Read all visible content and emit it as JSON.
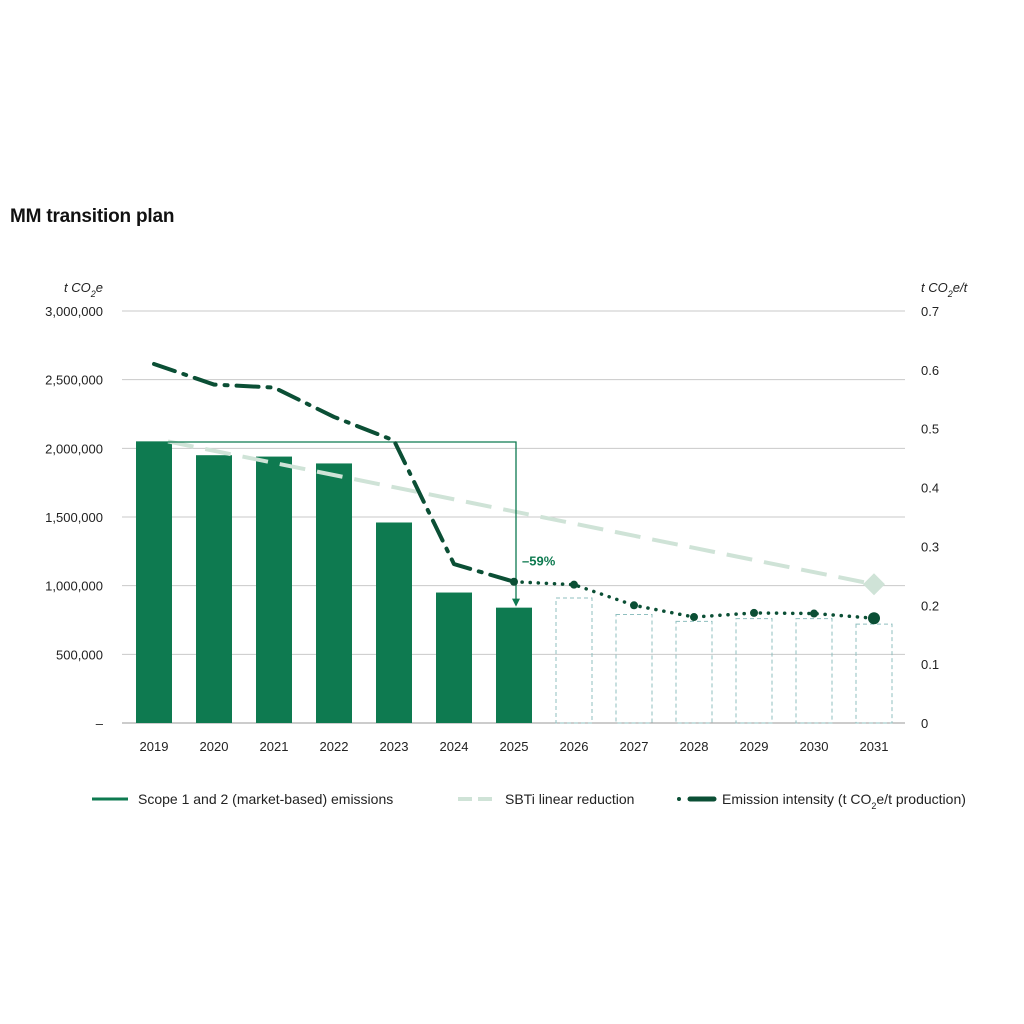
{
  "chart_data": {
    "type": "bar",
    "title": "MM transition plan",
    "left_axis": {
      "unit_prefix": "t CO",
      "unit_sub": "2",
      "unit_suffix": "e",
      "ylim": [
        0,
        3000000
      ],
      "ticks": [
        0,
        500000,
        1000000,
        1500000,
        2000000,
        2500000,
        3000000
      ],
      "tick_labels": [
        "–",
        "500,000",
        "1,000,000",
        "1,500,000",
        "2,000,000",
        "2,500,000",
        "3,000,000"
      ]
    },
    "right_axis": {
      "unit_prefix": "t CO",
      "unit_sub": "2",
      "unit_suffix": "e/t",
      "ylim": [
        0,
        0.7
      ],
      "ticks": [
        0,
        0.1,
        0.2,
        0.3,
        0.4,
        0.5,
        0.6,
        0.7
      ],
      "tick_labels": [
        "0",
        "0.1",
        "0.2",
        "0.3",
        "0.4",
        "0.5",
        "0.6",
        "0.7"
      ]
    },
    "categories": [
      "2019",
      "2020",
      "2021",
      "2022",
      "2023",
      "2024",
      "2025",
      "2026",
      "2027",
      "2028",
      "2029",
      "2030",
      "2031"
    ],
    "grid": true,
    "series": [
      {
        "name": "Scope 1 and 2 (market-based) emissions",
        "kind": "bar",
        "axis": "left",
        "color": "#0e7a50",
        "values": [
          2050000,
          1950000,
          1940000,
          1890000,
          1460000,
          950000,
          840000,
          null,
          null,
          null,
          null,
          null,
          null
        ],
        "projected_values": [
          null,
          null,
          null,
          null,
          null,
          null,
          null,
          910000,
          790000,
          740000,
          760000,
          760000,
          720000
        ]
      },
      {
        "name": "SBTi linear reduction",
        "kind": "line-dashed",
        "axis": "left",
        "color": "#cfe3d7",
        "values": [
          2050000,
          null,
          null,
          null,
          null,
          null,
          null,
          null,
          null,
          null,
          null,
          null,
          1010000
        ]
      },
      {
        "name_prefix": "Emission intensity (t CO",
        "name_sub": "2",
        "name_suffix": "e/t production)",
        "kind": "line-dashdot",
        "axis": "right",
        "color": "#0b4f35",
        "values": [
          0.61,
          0.575,
          0.57,
          0.52,
          0.48,
          0.27,
          0.24,
          0.235,
          0.2,
          0.18,
          0.187,
          0.186,
          0.178
        ]
      }
    ],
    "annotations": [
      {
        "text": "–59%",
        "from_category": "2019",
        "to_category": "2025"
      }
    ],
    "legend_position": "bottom"
  }
}
